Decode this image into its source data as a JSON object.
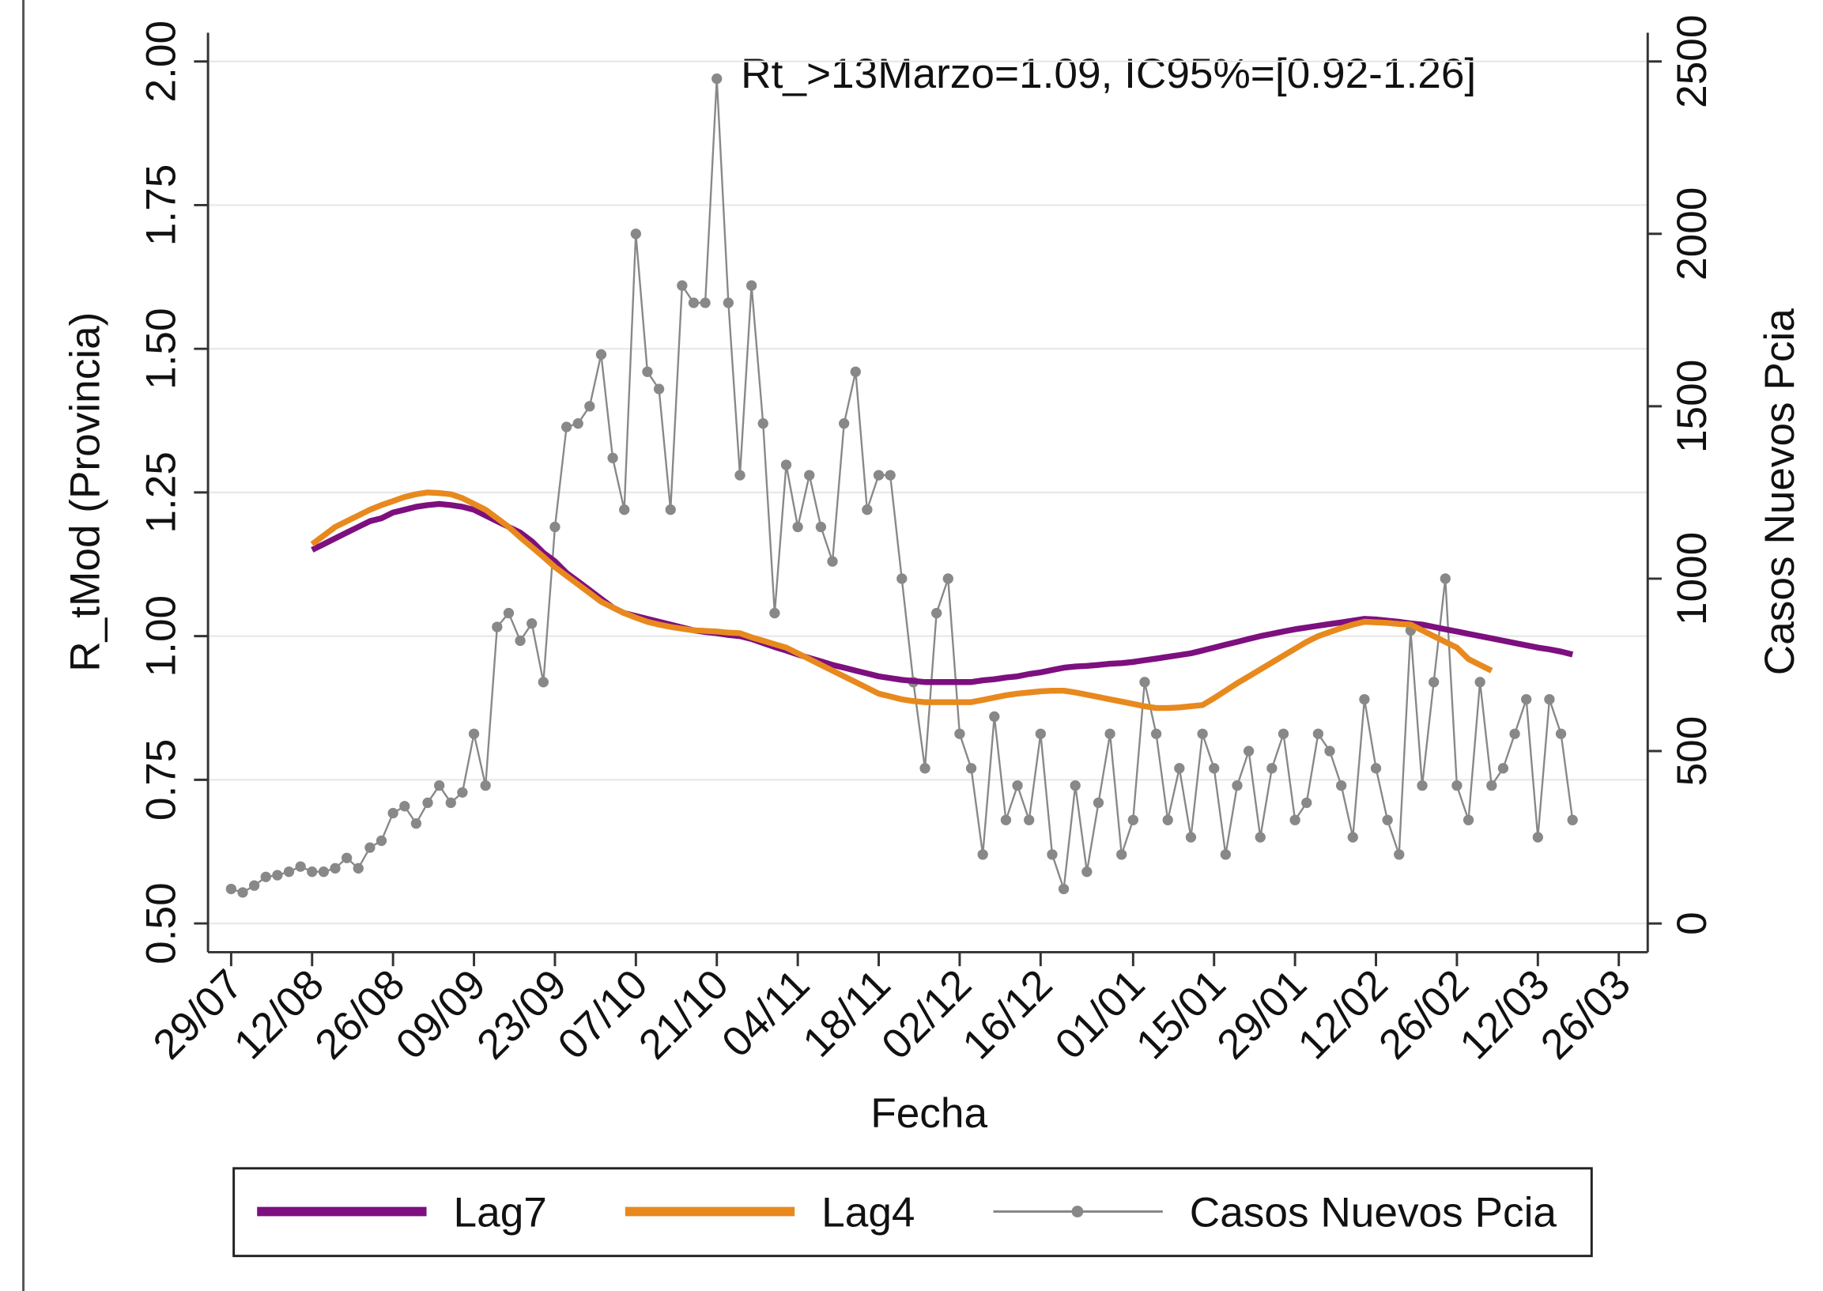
{
  "chart_data": {
    "type": "line",
    "annotation": "Rt_>13Marzo=1.09, IC95%=[0.92-1.26]",
    "xlabel": "Fecha",
    "ylabel": "R_tMod (Provincia)",
    "y2label": "Casos Nuevos Pcia",
    "x": [
      "29/07",
      "31/07",
      "02/08",
      "04/08",
      "06/08",
      "08/08",
      "10/08",
      "12/08",
      "14/08",
      "16/08",
      "18/08",
      "20/08",
      "22/08",
      "24/08",
      "26/08",
      "28/08",
      "30/08",
      "01/09",
      "03/09",
      "05/09",
      "07/09",
      "09/09",
      "11/09",
      "13/09",
      "15/09",
      "17/09",
      "19/09",
      "21/09",
      "23/09",
      "25/09",
      "27/09",
      "29/09",
      "01/10",
      "03/10",
      "05/10",
      "07/10",
      "09/10",
      "11/10",
      "13/10",
      "15/10",
      "17/10",
      "19/10",
      "21/10",
      "23/10",
      "25/10",
      "27/10",
      "29/10",
      "31/10",
      "02/11",
      "04/11",
      "06/11",
      "08/11",
      "10/11",
      "12/11",
      "14/11",
      "16/11",
      "18/11",
      "20/11",
      "22/11",
      "24/11",
      "26/11",
      "28/11",
      "30/11",
      "02/12",
      "04/12",
      "06/12",
      "08/12",
      "10/12",
      "12/12",
      "14/12",
      "16/12",
      "18/12",
      "20/12",
      "22/12",
      "24/12",
      "26/12",
      "28/12",
      "30/12",
      "01/01",
      "03/01",
      "05/01",
      "07/01",
      "09/01",
      "11/01",
      "13/01",
      "15/01",
      "17/01",
      "19/01",
      "21/01",
      "23/01",
      "25/01",
      "27/01",
      "29/01",
      "31/01",
      "02/02",
      "04/02",
      "06/02",
      "08/02",
      "10/02",
      "12/02",
      "14/02",
      "16/02",
      "18/02",
      "20/02",
      "22/02",
      "24/02",
      "26/02",
      "28/02",
      "02/03",
      "04/03",
      "06/03",
      "08/03",
      "10/03",
      "12/03",
      "14/03",
      "16/03",
      "18/03"
    ],
    "series": [
      {
        "name": "Lag7",
        "color": "#7d0f7f",
        "width": 5,
        "values": [
          null,
          null,
          null,
          null,
          null,
          null,
          null,
          1.15,
          1.16,
          1.17,
          1.18,
          1.19,
          1.2,
          1.205,
          1.215,
          1.22,
          1.225,
          1.228,
          1.23,
          1.228,
          1.225,
          1.22,
          1.21,
          1.2,
          1.19,
          1.18,
          1.165,
          1.145,
          1.13,
          1.11,
          1.095,
          1.08,
          1.065,
          1.05,
          1.04,
          1.035,
          1.03,
          1.025,
          1.02,
          1.015,
          1.01,
          1.007,
          1.005,
          1.002,
          1.0,
          0.995,
          0.988,
          0.981,
          0.975,
          0.968,
          0.962,
          0.956,
          0.95,
          0.945,
          0.94,
          0.935,
          0.93,
          0.927,
          0.924,
          0.922,
          0.92,
          0.92,
          0.92,
          0.92,
          0.92,
          0.923,
          0.925,
          0.928,
          0.93,
          0.934,
          0.937,
          0.941,
          0.945,
          0.947,
          0.948,
          0.95,
          0.952,
          0.953,
          0.955,
          0.958,
          0.961,
          0.964,
          0.967,
          0.97,
          0.975,
          0.98,
          0.985,
          0.99,
          0.995,
          1.0,
          1.004,
          1.008,
          1.012,
          1.015,
          1.018,
          1.021,
          1.024,
          1.027,
          1.03,
          1.029,
          1.027,
          1.025,
          1.022,
          1.02,
          1.016,
          1.012,
          1.008,
          1.004,
          1.0,
          0.996,
          0.992,
          0.988,
          0.984,
          0.98,
          0.977,
          0.973,
          0.968
        ]
      },
      {
        "name": "Lag4",
        "color": "#e8891e",
        "width": 5,
        "values": [
          null,
          null,
          null,
          null,
          null,
          null,
          null,
          1.16,
          1.175,
          1.19,
          1.2,
          1.21,
          1.22,
          1.228,
          1.235,
          1.242,
          1.247,
          1.25,
          1.249,
          1.247,
          1.24,
          1.23,
          1.22,
          1.205,
          1.19,
          1.172,
          1.155,
          1.138,
          1.12,
          1.105,
          1.09,
          1.075,
          1.06,
          1.05,
          1.04,
          1.032,
          1.025,
          1.02,
          1.016,
          1.013,
          1.01,
          1.009,
          1.008,
          1.006,
          1.005,
          0.998,
          0.992,
          0.986,
          0.98,
          0.97,
          0.96,
          0.95,
          0.94,
          0.93,
          0.92,
          0.91,
          0.9,
          0.895,
          0.89,
          0.887,
          0.885,
          0.885,
          0.885,
          0.885,
          0.885,
          0.889,
          0.893,
          0.897,
          0.9,
          0.902,
          0.904,
          0.905,
          0.905,
          0.902,
          0.898,
          0.894,
          0.89,
          0.886,
          0.882,
          0.878,
          0.875,
          0.875,
          0.876,
          0.878,
          0.88,
          0.892,
          0.905,
          0.918,
          0.93,
          0.942,
          0.954,
          0.966,
          0.978,
          0.99,
          1.0,
          1.007,
          1.014,
          1.02,
          1.025,
          1.024,
          1.023,
          1.021,
          1.02,
          1.01,
          1.0,
          0.99,
          0.98,
          0.96,
          0.95,
          0.94,
          null,
          null,
          null,
          null,
          null,
          null,
          null
        ]
      },
      {
        "name": "Casos Nuevos Pcia",
        "color": "#888888",
        "width": 1.6,
        "axis": "y2",
        "markers": true,
        "values": [
          100,
          90,
          110,
          135,
          140,
          150,
          165,
          150,
          150,
          160,
          190,
          160,
          220,
          240,
          320,
          340,
          290,
          350,
          400,
          350,
          380,
          550,
          400,
          860,
          900,
          820,
          870,
          700,
          1150,
          1440,
          1450,
          1500,
          1650,
          1350,
          1200,
          2000,
          1600,
          1550,
          1200,
          1850,
          1800,
          1800,
          2450,
          1800,
          1300,
          1850,
          1450,
          900,
          1330,
          1150,
          1300,
          1150,
          1050,
          1450,
          1600,
          1200,
          1300,
          1300,
          1000,
          700,
          450,
          900,
          1000,
          550,
          450,
          200,
          600,
          300,
          400,
          300,
          550,
          200,
          100,
          400,
          150,
          350,
          550,
          200,
          300,
          700,
          550,
          300,
          450,
          250,
          550,
          450,
          200,
          400,
          500,
          250,
          450,
          550,
          300,
          350,
          550,
          500,
          400,
          250,
          650,
          450,
          300,
          200,
          850,
          400,
          700,
          1000,
          400,
          300,
          700,
          400,
          450,
          550,
          650,
          250,
          650,
          550,
          300
        ]
      }
    ],
    "xlim": [
      "25/07",
      "31/03"
    ],
    "xticks": [
      "29/07",
      "12/08",
      "26/08",
      "09/09",
      "23/09",
      "07/10",
      "21/10",
      "04/11",
      "18/11",
      "02/12",
      "16/12",
      "01/01",
      "15/01",
      "29/01",
      "12/02",
      "26/02",
      "12/03",
      "26/03"
    ],
    "ylim": [
      0.45,
      2.05
    ],
    "yticks": [
      {
        "value": 0.5,
        "label": "0.50"
      },
      {
        "value": 0.75,
        "label": "0.75"
      },
      {
        "value": 1,
        "label": "1.00"
      },
      {
        "value": 1.25,
        "label": "1.25"
      },
      {
        "value": 1.5,
        "label": "1.50"
      },
      {
        "value": 1.75,
        "label": "1.75"
      },
      {
        "value": 2,
        "label": "2.00"
      }
    ],
    "y2lim": [
      -83.3,
      2583.3
    ],
    "y2ticks": [
      0,
      500,
      1000,
      1500,
      2000,
      2500
    ],
    "grid": true,
    "legend": "bottom"
  }
}
